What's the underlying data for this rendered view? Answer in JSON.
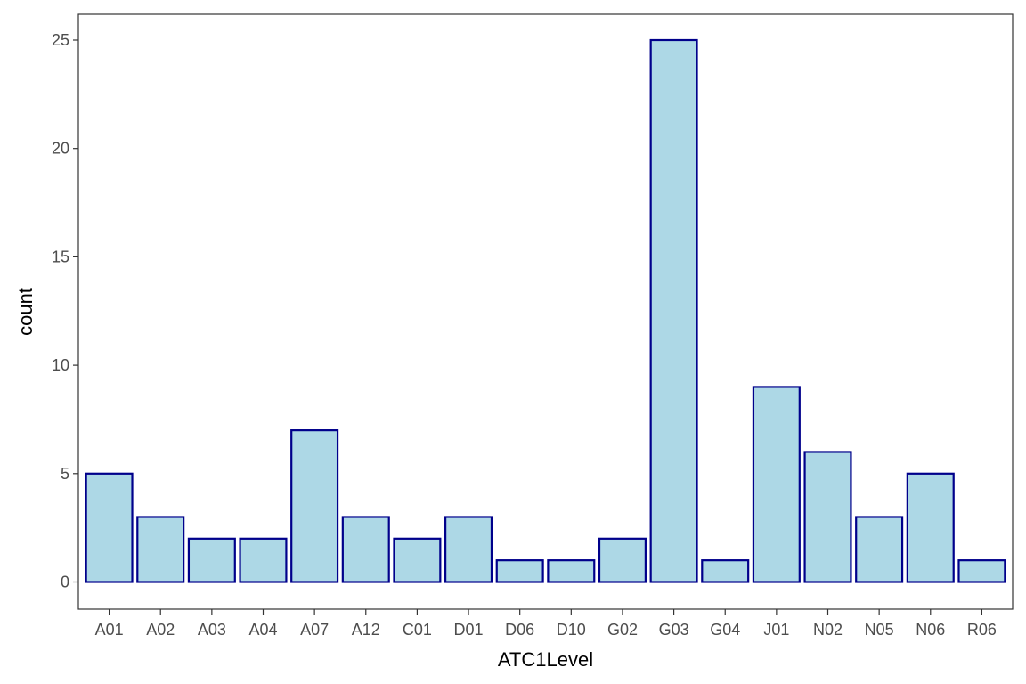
{
  "chart_data": {
    "type": "bar",
    "categories": [
      "A01",
      "A02",
      "A03",
      "A04",
      "A07",
      "A12",
      "C01",
      "D01",
      "D06",
      "D10",
      "G02",
      "G03",
      "G04",
      "J01",
      "N02",
      "N05",
      "N06",
      "R06"
    ],
    "values": [
      5,
      3,
      2,
      2,
      7,
      3,
      2,
      3,
      1,
      1,
      2,
      25,
      1,
      9,
      6,
      3,
      5,
      1
    ],
    "xlabel": "ATC1Level",
    "ylabel": "count",
    "ylim": [
      0,
      25
    ],
    "yticks": [
      0,
      5,
      10,
      15,
      20,
      25
    ],
    "grid": false,
    "colors": {
      "bar_fill": "#add8e6",
      "bar_stroke": "#00008b",
      "panel_border": "#333333",
      "tick": "#333333"
    }
  }
}
